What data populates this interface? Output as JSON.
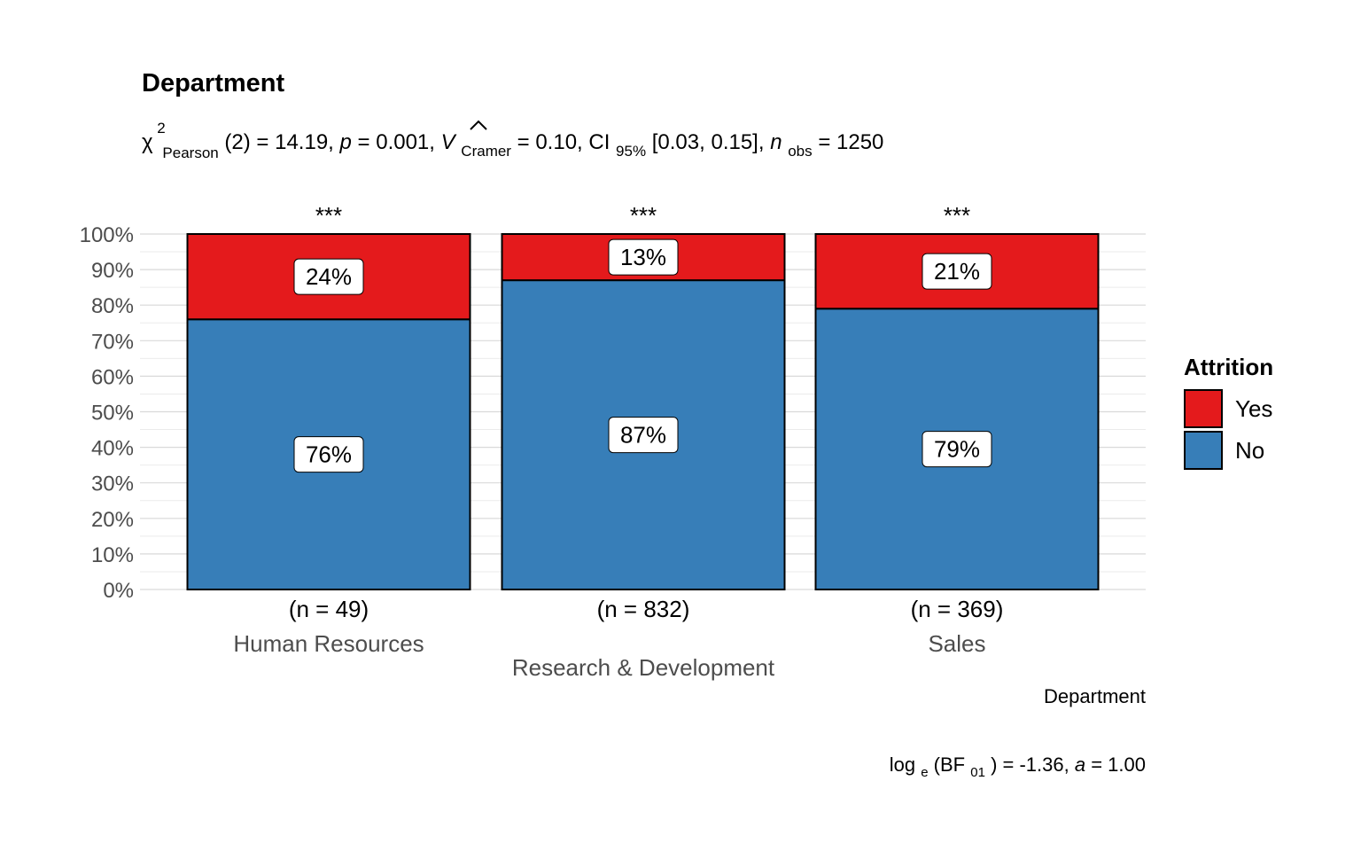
{
  "chart_data": {
    "type": "bar",
    "stacked": true,
    "title": "Department",
    "subtitle": {
      "chi_symbol": "χ",
      "chi_sup": "2",
      "chi_sub": "Pearson",
      "df_part": "(2) = 14.19, ",
      "p_symbol": "p",
      "p_part": " = 0.001, ",
      "v_symbol": "V",
      "v_hat": "^",
      "v_sub": "Cramer",
      "v_part": " = 0.10, CI",
      "ci_sub": "95%",
      "ci_part": " [0.03, 0.15], ",
      "n_symbol": "n",
      "n_sub": "obs",
      "n_part": " = 1250"
    },
    "categories": [
      "Human Resources",
      "Research & Development",
      "Sales"
    ],
    "category_counts": [
      "(n = 49)",
      "(n = 832)",
      "(n = 369)"
    ],
    "significance": [
      "***",
      "***",
      "***"
    ],
    "series": [
      {
        "name": "No",
        "color": "#377EB8",
        "values": [
          76,
          87,
          79
        ],
        "labels": [
          "76%",
          "87%",
          "79%"
        ]
      },
      {
        "name": "Yes",
        "color": "#E41A1C",
        "values": [
          24,
          13,
          21
        ],
        "labels": [
          "24%",
          "13%",
          "21%"
        ]
      }
    ],
    "xlabel": "Department",
    "ylabel": "",
    "ylim": [
      0,
      100
    ],
    "yticks": [
      "0%",
      "10%",
      "20%",
      "30%",
      "40%",
      "50%",
      "60%",
      "70%",
      "80%",
      "90%",
      "100%"
    ],
    "grid": true,
    "legend": {
      "title": "Attrition",
      "position": "right",
      "entries": [
        {
          "name": "Yes",
          "color": "#E41A1C"
        },
        {
          "name": "No",
          "color": "#377EB8"
        }
      ]
    },
    "caption": {
      "log_part": "log",
      "log_sub": "e",
      "bf_part": "(BF",
      "bf_sub": "01",
      "rest_part": ") = -1.36, ",
      "a_symbol": "a",
      "a_part": " = 1.00"
    }
  }
}
